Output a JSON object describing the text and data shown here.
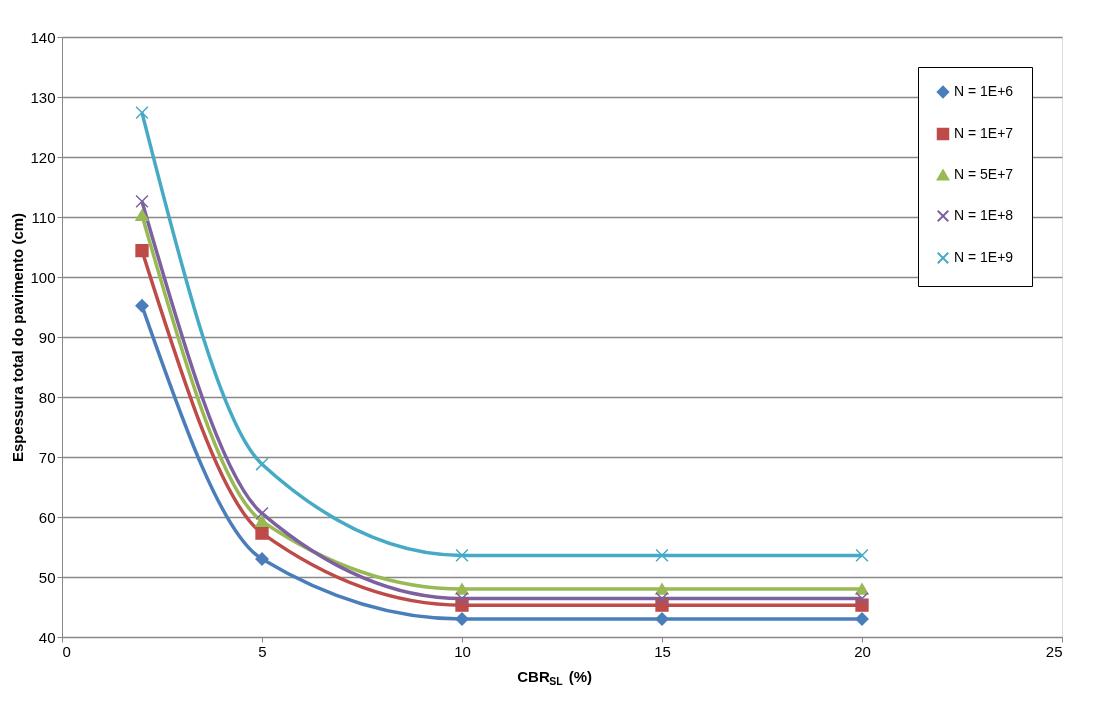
{
  "chart_data": {
    "type": "line",
    "xlabel": "CBR$_{SL}$ (%)",
    "ylabel": "Espessura total do pavimento (cm)",
    "x": [
      2,
      5,
      10,
      15,
      20
    ],
    "series": [
      {
        "name": "N = 1E+6",
        "color": "#4a7ebb",
        "marker": "diamond",
        "values": [
          95.2,
          53.0,
          43.0,
          43.0,
          43.0
        ]
      },
      {
        "name": "N = 1E+7",
        "color": "#be4b48",
        "marker": "square",
        "values": [
          104.4,
          57.3,
          45.3,
          45.3,
          45.3
        ]
      },
      {
        "name": "N = 5E+7",
        "color": "#98b954",
        "marker": "triangle",
        "values": [
          110.3,
          59.3,
          48.0,
          48.0,
          48.0
        ]
      },
      {
        "name": "N = 1E+8",
        "color": "#7d60a0",
        "marker": "cross",
        "values": [
          112.6,
          60.6,
          46.4,
          46.4,
          46.4
        ]
      },
      {
        "name": "N = 1E+9",
        "color": "#46aac5",
        "marker": "cross",
        "values": [
          127.4,
          68.8,
          53.6,
          53.6,
          53.6
        ]
      }
    ],
    "xlim": [
      0,
      25
    ],
    "xticks": [
      0,
      5,
      10,
      15,
      20,
      25
    ],
    "ylim": [
      40,
      140
    ],
    "yticks": [
      40,
      50,
      60,
      70,
      80,
      90,
      100,
      110,
      120,
      130,
      140
    ],
    "grid": "y",
    "legend": "top right",
    "line_style": "solid"
  }
}
